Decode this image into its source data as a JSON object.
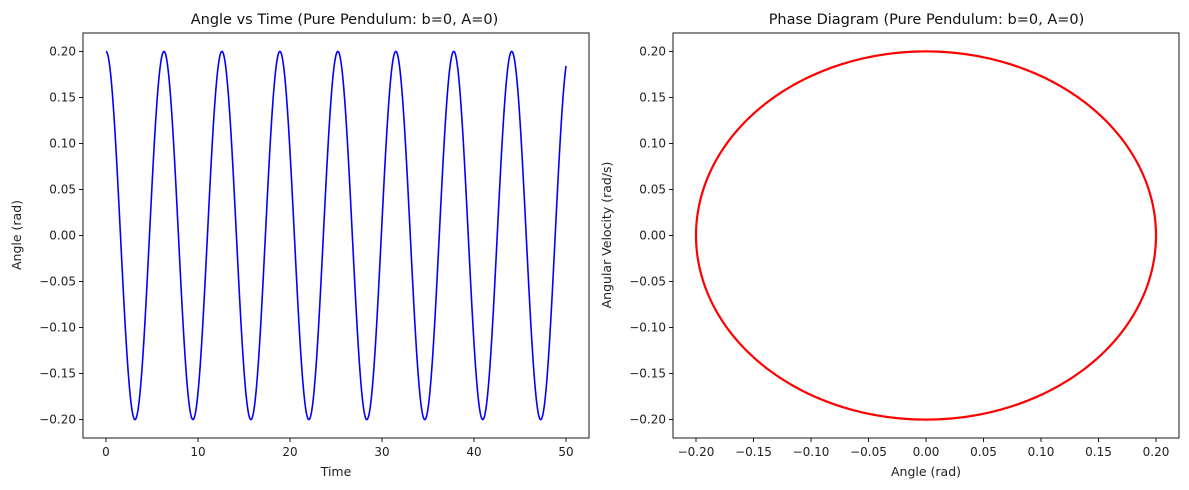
{
  "chart_data": [
    {
      "type": "line",
      "title": "Angle vs Time (Pure Pendulum: b=0, A=0)",
      "xlabel": "Time",
      "ylabel": "Angle (rad)",
      "xlim": [
        -2.5,
        52.5
      ],
      "ylim": [
        -0.22,
        0.22
      ],
      "xticks": [
        0,
        10,
        20,
        30,
        40,
        50
      ],
      "xtick_labels": [
        "0",
        "10",
        "20",
        "30",
        "40",
        "50"
      ],
      "yticks": [
        -0.2,
        -0.15,
        -0.1,
        -0.05,
        0.0,
        0.05,
        0.1,
        0.15,
        0.2
      ],
      "ytick_labels": [
        "−0.20",
        "−0.15",
        "−0.10",
        "−0.05",
        "0.00",
        "0.05",
        "0.10",
        "0.15",
        "0.20"
      ],
      "grid": false,
      "series": [
        {
          "color": "#0000ff",
          "amplitude": 0.2,
          "period": 6.3,
          "t_start": 0,
          "t_end": 50
        }
      ]
    },
    {
      "type": "line",
      "title": "Phase Diagram (Pure Pendulum: b=0, A=0)",
      "xlabel": "Angle (rad)",
      "ylabel": "Angular Velocity (rad/s)",
      "xlim": [
        -0.22,
        0.22
      ],
      "ylim": [
        -0.22,
        0.22
      ],
      "xticks": [
        -0.2,
        -0.15,
        -0.1,
        -0.05,
        0.0,
        0.05,
        0.1,
        0.15,
        0.2
      ],
      "xtick_labels": [
        "−0.20",
        "−0.15",
        "−0.10",
        "−0.05",
        "0.00",
        "0.05",
        "0.10",
        "0.15",
        "0.20"
      ],
      "yticks": [
        -0.2,
        -0.15,
        -0.1,
        -0.05,
        0.0,
        0.05,
        0.1,
        0.15,
        0.2
      ],
      "ytick_labels": [
        "−0.20",
        "−0.15",
        "−0.10",
        "−0.05",
        "0.00",
        "0.05",
        "0.10",
        "0.15",
        "0.20"
      ],
      "grid": false,
      "series": [
        {
          "color": "#ff0000",
          "shape": "closed orbit",
          "x_amplitude": 0.2,
          "y_amplitude": 0.2
        }
      ]
    }
  ]
}
